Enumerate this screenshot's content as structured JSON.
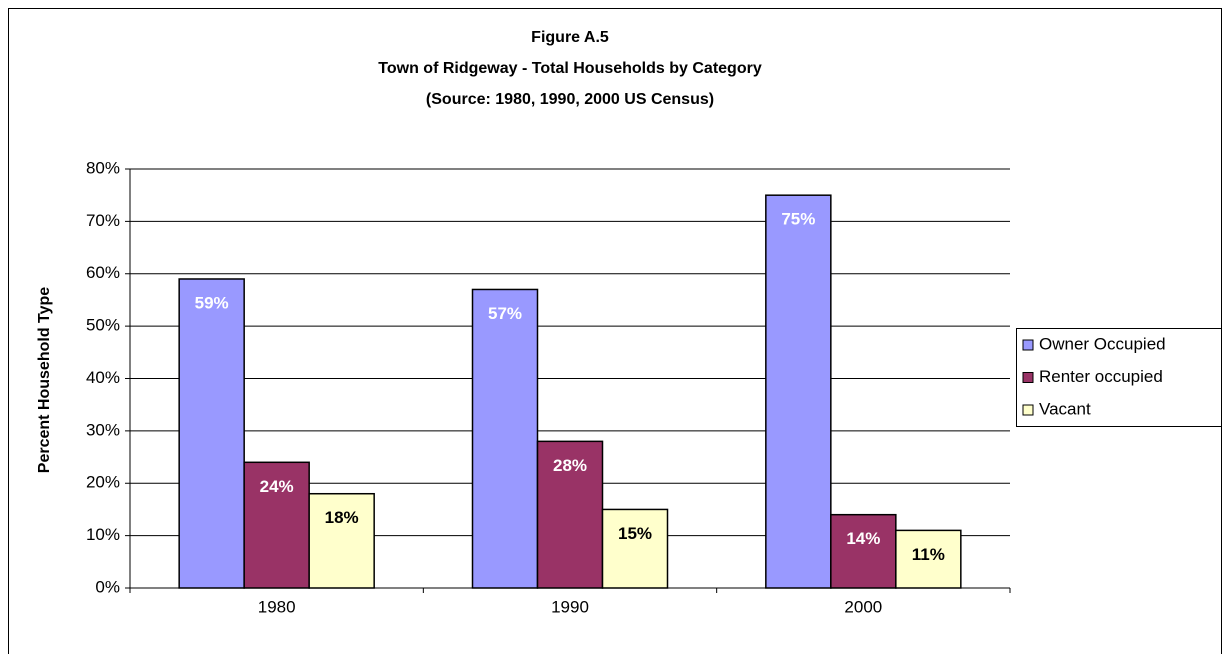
{
  "chart_data": {
    "type": "bar",
    "title": "Figure A.5",
    "subtitle": [
      "Town of Ridgeway - Total Households by Category",
      "(Source:  1980, 1990, 2000 US Census)"
    ],
    "y_label": "Percent Household Type",
    "categories": [
      "1980",
      "1990",
      "2000"
    ],
    "series": [
      {
        "name": "Owner Occupied",
        "color": "#9999ff",
        "label_color": "#ffffff",
        "values": [
          59,
          57,
          75
        ],
        "value_labels": [
          "59%",
          "57%",
          "75%"
        ]
      },
      {
        "name": "Renter occupied",
        "color": "#993366",
        "label_color": "#ffffff",
        "values": [
          24,
          28,
          14
        ],
        "value_labels": [
          "24%",
          "28%",
          "14%"
        ]
      },
      {
        "name": "Vacant",
        "color": "#ffffcc",
        "label_color": "#000000",
        "values": [
          18,
          15,
          11
        ],
        "value_labels": [
          "18%",
          "15%",
          "11%"
        ]
      }
    ],
    "ylim": [
      0,
      80
    ],
    "yticks": [
      {
        "value": 0,
        "label": "0%"
      },
      {
        "value": 10,
        "label": "10%"
      },
      {
        "value": 20,
        "label": "20%"
      },
      {
        "value": 30,
        "label": "30%"
      },
      {
        "value": 40,
        "label": "40%"
      },
      {
        "value": 50,
        "label": "50%"
      },
      {
        "value": 60,
        "label": "60%"
      },
      {
        "value": 70,
        "label": "70%"
      },
      {
        "value": 80,
        "label": "80%"
      }
    ],
    "grid": true,
    "legend": "right"
  }
}
